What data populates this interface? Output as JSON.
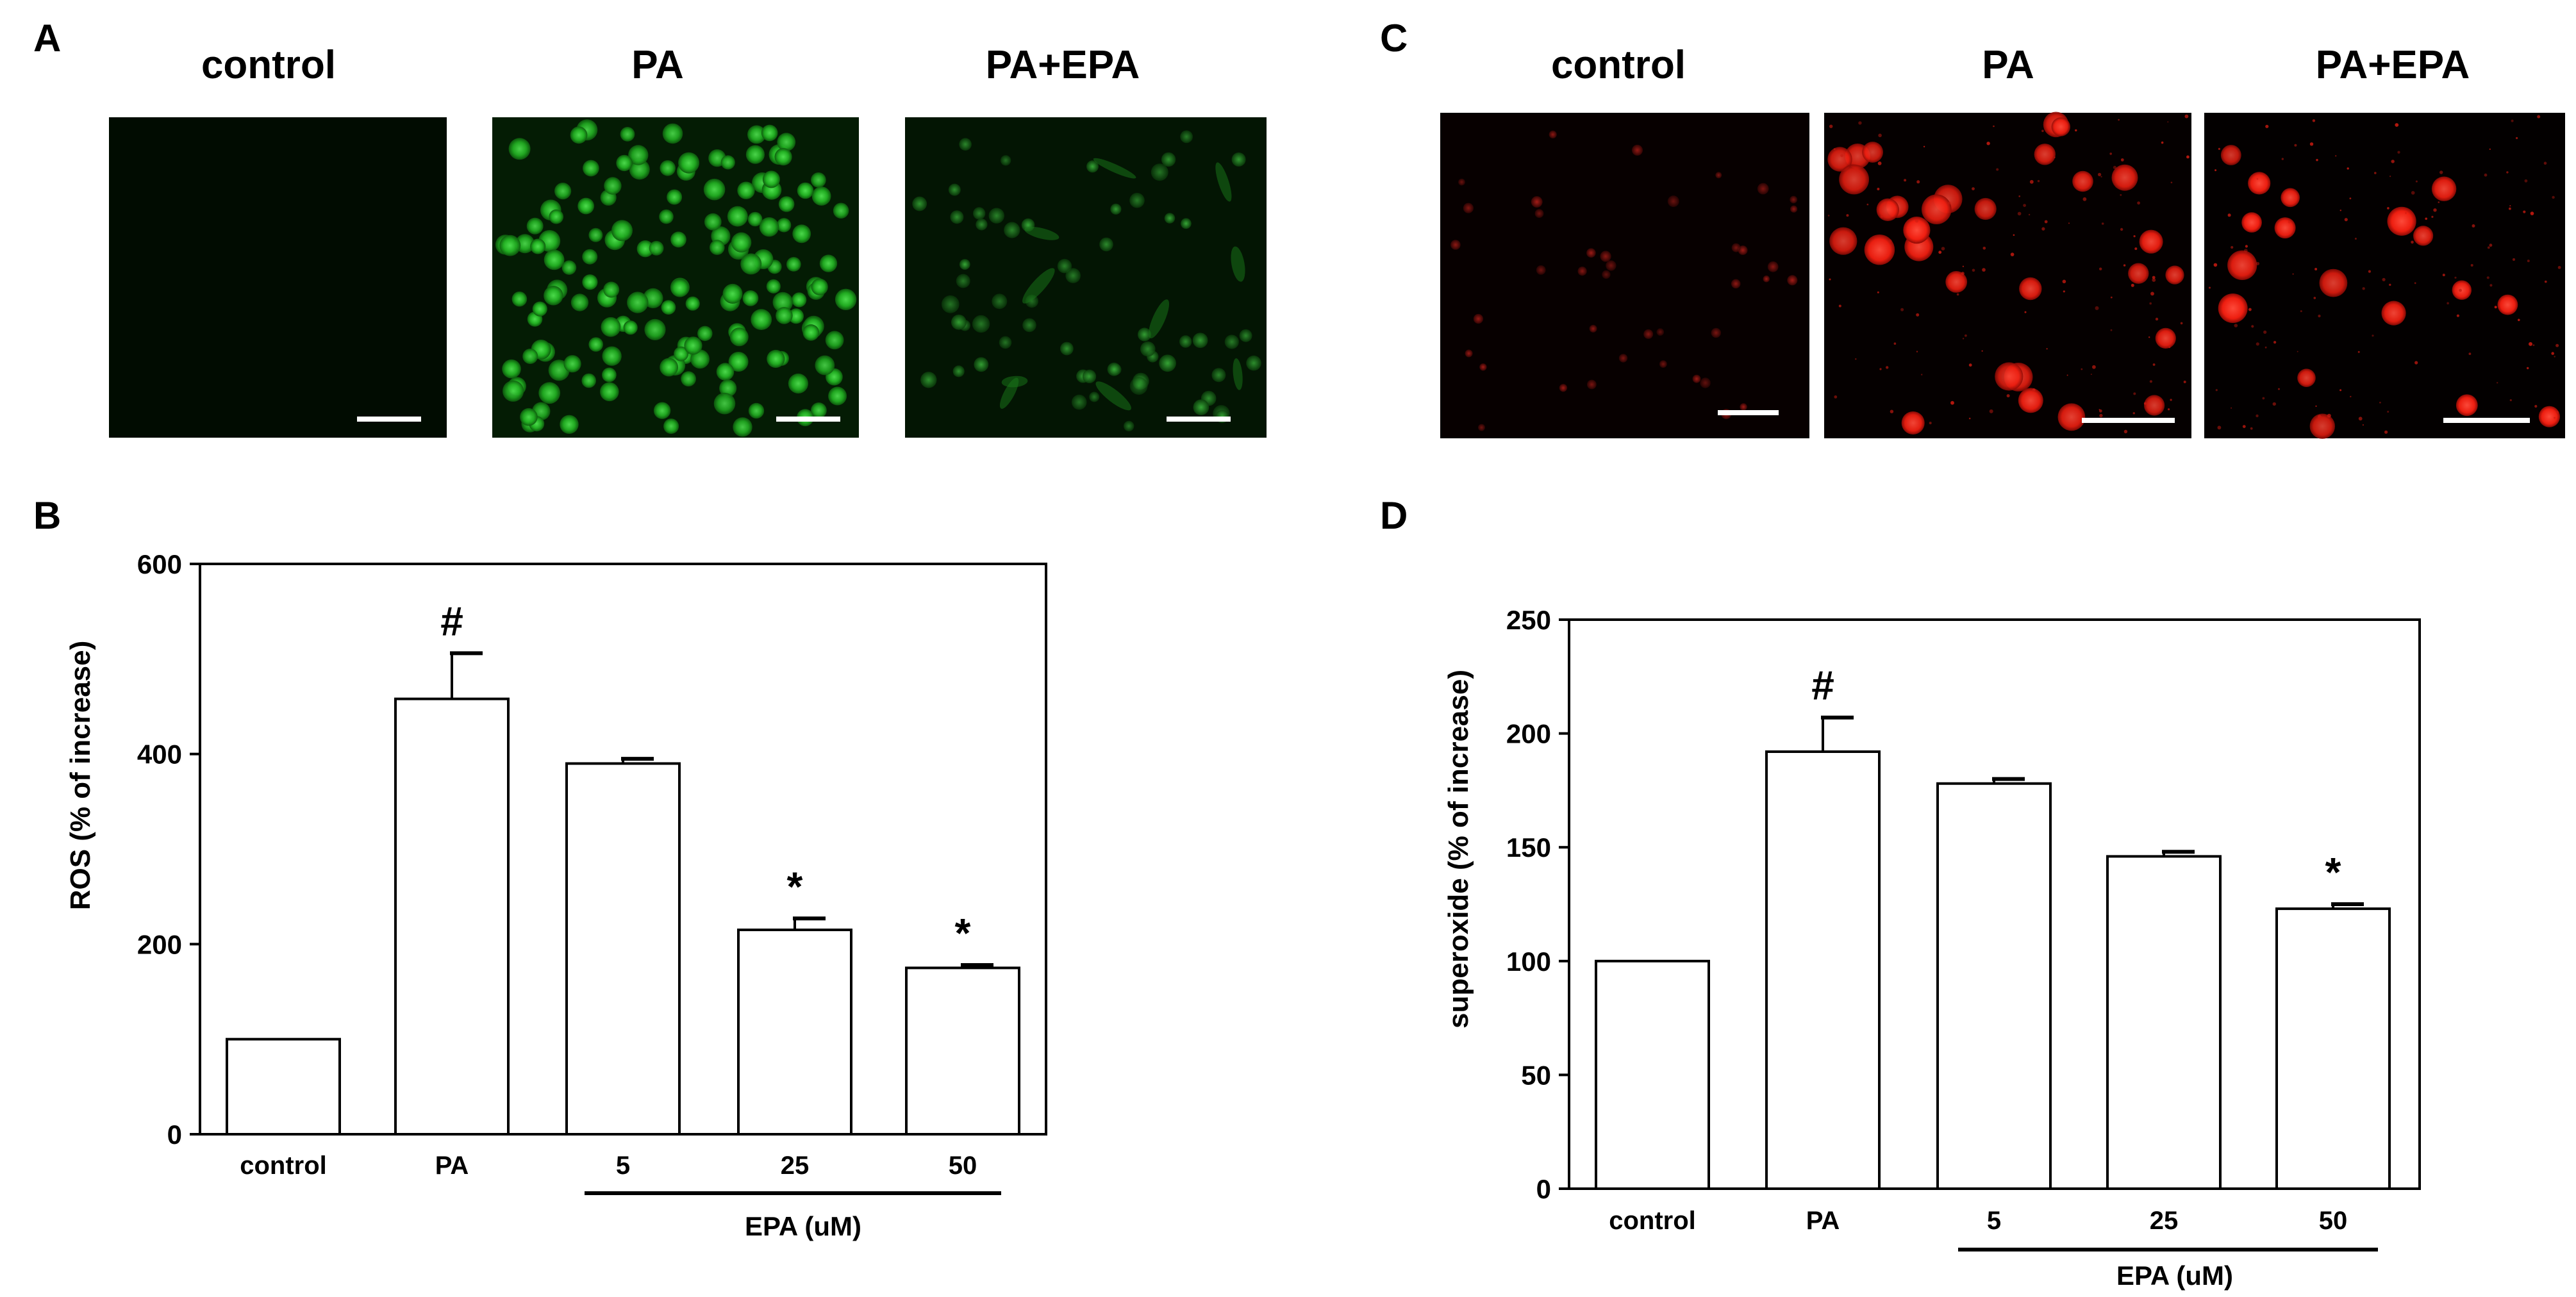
{
  "panel_labels": {
    "a": "A",
    "b": "B",
    "c": "C",
    "d": "D"
  },
  "micrographs": {
    "green": {
      "titles": [
        "control",
        "PA",
        "PA+EPA"
      ],
      "images": [
        {
          "name": "green-control-micrograph",
          "tone": "dim",
          "cells": 0
        },
        {
          "name": "green-pa-micrograph",
          "tone": "bright",
          "cells": 150
        },
        {
          "name": "green-pa-epa-micrograph",
          "tone": "medium",
          "cells": 60
        }
      ]
    },
    "red": {
      "titles": [
        "control",
        "PA",
        "PA+EPA"
      ],
      "images": [
        {
          "name": "red-control-micrograph",
          "tone": "dim",
          "cells": 40
        },
        {
          "name": "red-pa-micrograph",
          "tone": "bright",
          "cells": 30
        },
        {
          "name": "red-pa-epa-micrograph",
          "tone": "medium",
          "cells": 18
        }
      ]
    }
  },
  "chart_data": [
    {
      "type": "bar",
      "panel": "B",
      "categories": [
        "control",
        "PA",
        "5",
        "25",
        "50"
      ],
      "values": [
        100,
        458,
        390,
        215,
        175
      ],
      "errors": [
        0,
        48,
        5,
        12,
        3
      ],
      "markers": [
        "",
        "#",
        "",
        "*",
        "*"
      ],
      "ylabel": "ROS  (% of increase)",
      "ylim": [
        0,
        600
      ],
      "yticks": [
        0,
        200,
        400,
        600
      ],
      "group_label": "EPA (uM)",
      "grid": false,
      "bar_color": "#ffffff",
      "line_color": "#000000"
    },
    {
      "type": "bar",
      "panel": "D",
      "categories": [
        "control",
        "PA",
        "5",
        "25",
        "50"
      ],
      "values": [
        100,
        192,
        178,
        146,
        123
      ],
      "errors": [
        0,
        15,
        2,
        2,
        2
      ],
      "markers": [
        "",
        "#",
        "",
        "",
        "*"
      ],
      "ylabel": "superoxide  (% of increase)",
      "ylim": [
        0,
        250
      ],
      "yticks": [
        0,
        50,
        100,
        150,
        200,
        250
      ],
      "group_label": "EPA (uM)",
      "grid": false,
      "bar_color": "#ffffff",
      "line_color": "#000000"
    }
  ]
}
